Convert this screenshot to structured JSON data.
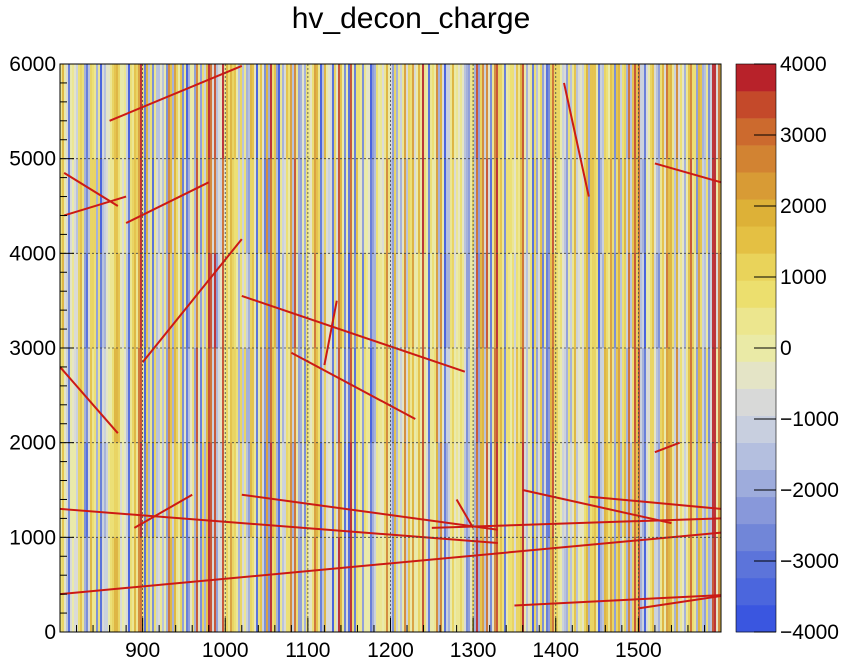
{
  "chart_data": {
    "type": "heatmap",
    "title": "hv_decon_charge",
    "xlabel": "",
    "ylabel": "",
    "xlim": [
      800,
      1600
    ],
    "ylim": [
      0,
      6000
    ],
    "x_ticks": [
      900,
      1000,
      1100,
      1200,
      1300,
      1400,
      1500
    ],
    "y_ticks": [
      0,
      1000,
      2000,
      3000,
      4000,
      5000,
      6000
    ],
    "grid": true,
    "colorbar": {
      "range": [
        -4000,
        4000
      ],
      "ticks": [
        4000,
        3000,
        2000,
        1000,
        0,
        -1000,
        -2000,
        -3000,
        -4000
      ],
      "tick_labels": [
        "4000",
        "3000",
        "2000",
        "1000",
        "0",
        "−1000",
        "−2000",
        "−3000",
        "−4000"
      ],
      "colors_bottom_to_top": [
        "#3a56e0",
        "#4b66dd",
        "#5c74da",
        "#7186d8",
        "#8898da",
        "#9eacdc",
        "#b4bfdf",
        "#c8cfdf",
        "#d8d9d8",
        "#e4e4c6",
        "#eaeaa6",
        "#ece68e",
        "#ecdf6e",
        "#e9d35a",
        "#e4c043",
        "#ddb137",
        "#d89b35",
        "#d28332",
        "#cc6a2e",
        "#c4492a",
        "#b8222a"
      ]
    },
    "tracks": [
      {
        "x": [
          800,
          1600
        ],
        "y": [
          400,
          1050
        ]
      },
      {
        "x": [
          800,
          1330
        ],
        "y": [
          1300,
          940
        ]
      },
      {
        "x": [
          890,
          960
        ],
        "y": [
          1100,
          1450
        ]
      },
      {
        "x": [
          1020,
          1330
        ],
        "y": [
          1450,
          1080
        ]
      },
      {
        "x": [
          1350,
          1600
        ],
        "y": [
          280,
          390
        ]
      },
      {
        "x": [
          1360,
          1540
        ],
        "y": [
          1500,
          1150
        ]
      },
      {
        "x": [
          1500,
          1600
        ],
        "y": [
          250,
          380
        ]
      },
      {
        "x": [
          1440,
          1600
        ],
        "y": [
          1430,
          1300
        ]
      },
      {
        "x": [
          1250,
          1600
        ],
        "y": [
          1100,
          1200
        ]
      },
      {
        "x": [
          900,
          1020
        ],
        "y": [
          2850,
          4150
        ]
      },
      {
        "x": [
          1020,
          1290
        ],
        "y": [
          3550,
          2750
        ]
      },
      {
        "x": [
          1120,
          1135
        ],
        "y": [
          2820,
          3500
        ]
      },
      {
        "x": [
          1080,
          1230
        ],
        "y": [
          2950,
          2250
        ]
      },
      {
        "x": [
          860,
          1020
        ],
        "y": [
          5400,
          5980
        ]
      },
      {
        "x": [
          880,
          980
        ],
        "y": [
          4320,
          4750
        ]
      },
      {
        "x": [
          805,
          870
        ],
        "y": [
          4850,
          4500
        ]
      },
      {
        "x": [
          805,
          880
        ],
        "y": [
          4400,
          4600
        ]
      },
      {
        "x": [
          1410,
          1440
        ],
        "y": [
          5800,
          4600
        ]
      },
      {
        "x": [
          1520,
          1600
        ],
        "y": [
          4950,
          4750
        ]
      },
      {
        "x": [
          1520,
          1550
        ],
        "y": [
          1900,
          2000
        ]
      },
      {
        "x": [
          800,
          870
        ],
        "y": [
          2800,
          2100
        ]
      },
      {
        "x": [
          1280,
          1300
        ],
        "y": [
          1400,
          1100
        ]
      }
    ]
  },
  "colors": {
    "background": "#ffffff",
    "axis": "#000000",
    "grid": "#444444",
    "track": "#cc1a14"
  }
}
